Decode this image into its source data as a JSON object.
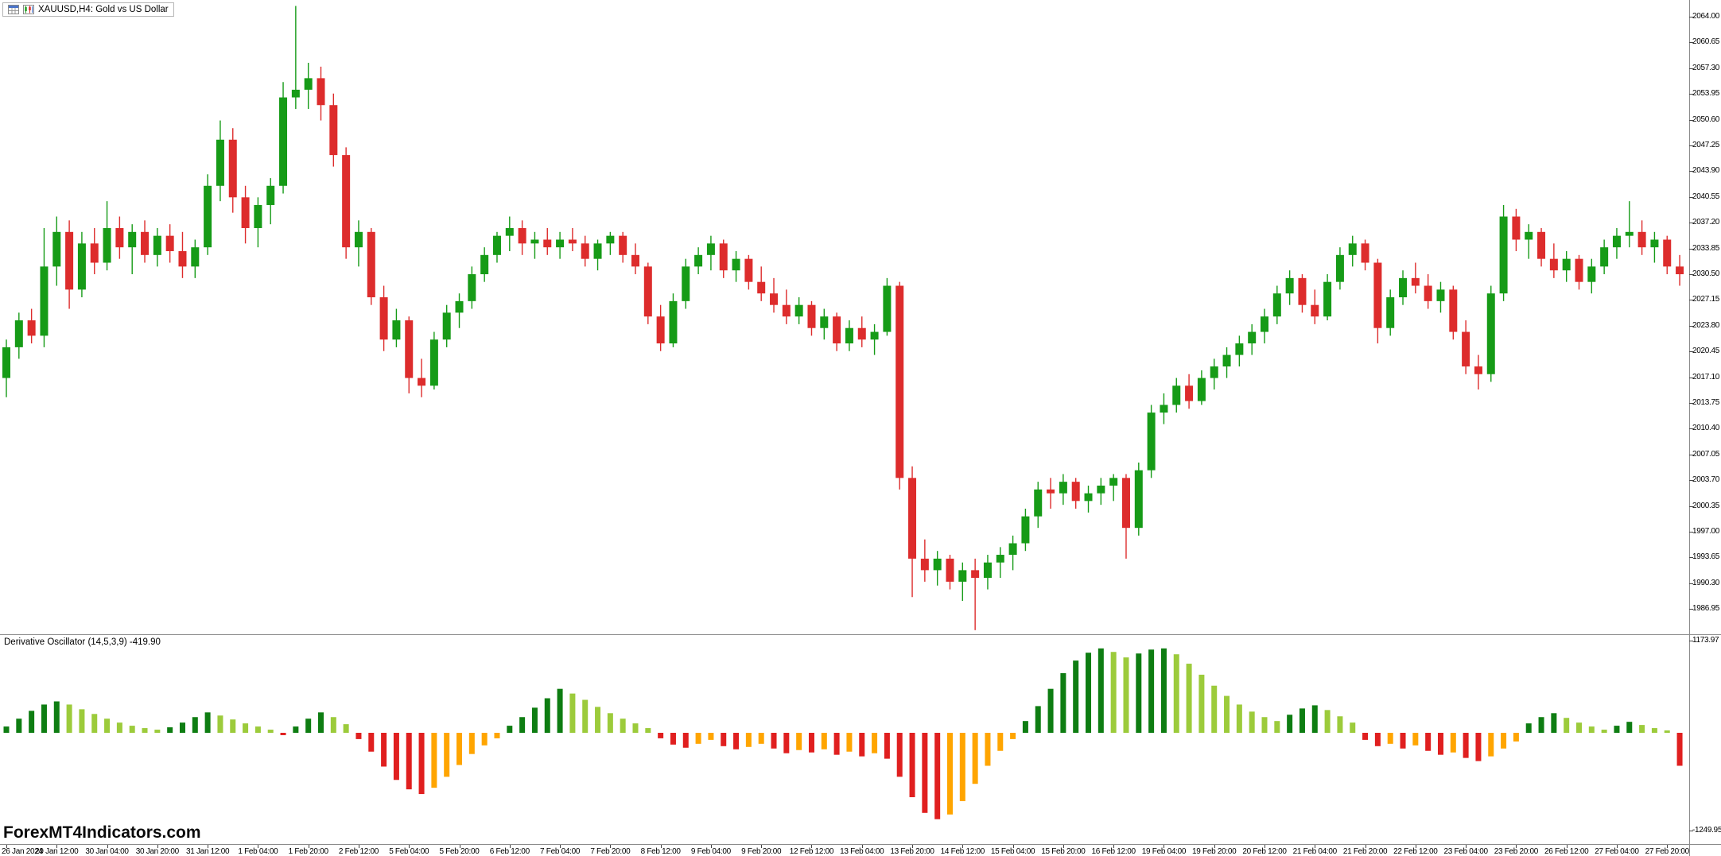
{
  "window": {
    "title": "XAUUSD,H4: Gold vs US Dollar",
    "symbol": "XAUUSD",
    "timeframe": "H4",
    "description": "Gold vs US Dollar"
  },
  "watermark": "ForexMT4Indicators.com",
  "indicator": {
    "name": "Derivative Oscillator",
    "params": "(14,5,3,9)",
    "current_value": "-419.90",
    "label_full": "Derivative Oscillator (14,5,3,9) -419.90"
  },
  "colors": {
    "background": "#FFFFFF",
    "axis_text": "#000000",
    "bull_candle": "#169B17",
    "bear_candle": "#DD2C2C",
    "osc_rising_positive": "#0E7D12",
    "osc_falling_positive": "#9CCB3B",
    "osc_falling_negative": "#E01F1F",
    "osc_rising_negative": "#FFA500"
  },
  "price_axis": {
    "top_value": 2064.0,
    "step": 3.35,
    "labels": [
      "2064.00",
      "2060.65",
      "2057.30",
      "2053.95",
      "2050.60",
      "2047.25",
      "2043.90",
      "2040.55",
      "2037.20",
      "2033.85",
      "2030.50",
      "2027.15",
      "2023.80",
      "2020.45",
      "2017.10",
      "2013.75",
      "2010.40",
      "2007.05",
      "2003.70",
      "2000.35",
      "1997.00",
      "1993.65",
      "1990.30",
      "1986.95"
    ]
  },
  "indicator_axis": {
    "max_label": "1173.97",
    "min_label": "-1249.95"
  },
  "time_axis": {
    "label_every_bars": 4,
    "labels": [
      "26 Jan 2024",
      "29 Jan 12:00",
      "30 Jan 04:00",
      "30 Jan 20:00",
      "31 Jan 12:00",
      "1 Feb 04:00",
      "1 Feb 20:00",
      "2 Feb 12:00",
      "5 Feb 04:00",
      "5 Feb 20:00",
      "6 Feb 12:00",
      "7 Feb 04:00",
      "7 Feb 20:00",
      "8 Feb 12:00",
      "9 Feb 04:00",
      "9 Feb 20:00",
      "12 Feb 12:00",
      "13 Feb 04:00",
      "13 Feb 20:00",
      "14 Feb 12:00",
      "15 Feb 04:00",
      "15 Feb 20:00",
      "16 Feb 12:00",
      "19 Feb 04:00",
      "19 Feb 20:00",
      "20 Feb 12:00",
      "21 Feb 04:00",
      "21 Feb 20:00",
      "22 Feb 12:00",
      "23 Feb 04:00",
      "23 Feb 20:00",
      "26 Feb 12:00",
      "27 Feb 04:00",
      "27 Feb 20:00"
    ]
  },
  "chart_data": [
    {
      "type": "candlestick",
      "title": "XAUUSD H4 - Gold vs US Dollar",
      "ylim": [
        1984.2,
        2066.2
      ],
      "ohlc": [
        [
          2017,
          2022,
          2014.5,
          2021
        ],
        [
          2021,
          2025.5,
          2019.5,
          2024.5
        ],
        [
          2024.5,
          2026,
          2021.5,
          2022.5
        ],
        [
          2022.5,
          2036.5,
          2021,
          2031.5
        ],
        [
          2031.5,
          2038,
          2029,
          2036
        ],
        [
          2036,
          2037.5,
          2026,
          2028.5
        ],
        [
          2028.5,
          2036,
          2027.5,
          2034.5
        ],
        [
          2034.5,
          2036.5,
          2030.5,
          2032
        ],
        [
          2032,
          2040,
          2031,
          2036.5
        ],
        [
          2036.5,
          2038,
          2032.5,
          2034
        ],
        [
          2034,
          2037,
          2030.5,
          2036
        ],
        [
          2036,
          2037.5,
          2032,
          2033
        ],
        [
          2033,
          2036.5,
          2031.5,
          2035.5
        ],
        [
          2035.5,
          2037,
          2032,
          2033.5
        ],
        [
          2033.5,
          2036,
          2030,
          2031.5
        ],
        [
          2031.5,
          2035,
          2030,
          2034
        ],
        [
          2034,
          2043.5,
          2033,
          2042
        ],
        [
          2042,
          2050.5,
          2040,
          2048
        ],
        [
          2048,
          2049.5,
          2038.5,
          2040.5
        ],
        [
          2040.5,
          2042,
          2034.5,
          2036.5
        ],
        [
          2036.5,
          2040.5,
          2034,
          2039.5
        ],
        [
          2039.5,
          2043,
          2037,
          2042
        ],
        [
          2042,
          2055.5,
          2041,
          2053.5
        ],
        [
          2053.5,
          2065.4,
          2052,
          2054.5
        ],
        [
          2054.5,
          2058,
          2052,
          2056
        ],
        [
          2056,
          2057.5,
          2050.5,
          2052.5
        ],
        [
          2052.5,
          2054,
          2044.5,
          2046
        ],
        [
          2046,
          2047,
          2032.5,
          2034
        ],
        [
          2034,
          2037.5,
          2031.5,
          2036
        ],
        [
          2036,
          2036.5,
          2026.5,
          2027.5
        ],
        [
          2027.5,
          2029,
          2020.5,
          2022
        ],
        [
          2022,
          2026,
          2021,
          2024.5
        ],
        [
          2024.5,
          2025,
          2015,
          2017
        ],
        [
          2017,
          2019.5,
          2014.5,
          2016
        ],
        [
          2016,
          2023,
          2015.5,
          2022
        ],
        [
          2022,
          2026.5,
          2021,
          2025.5
        ],
        [
          2025.5,
          2028,
          2023.5,
          2027
        ],
        [
          2027,
          2031.5,
          2026,
          2030.5
        ],
        [
          2030.5,
          2034,
          2029.5,
          2033
        ],
        [
          2033,
          2036,
          2032,
          2035.5
        ],
        [
          2035.5,
          2038,
          2033.5,
          2036.5
        ],
        [
          2036.5,
          2037.5,
          2033,
          2034.5
        ],
        [
          2034.5,
          2036,
          2032.5,
          2035
        ],
        [
          2035,
          2036.5,
          2033,
          2034
        ],
        [
          2034,
          2036,
          2032.5,
          2035
        ],
        [
          2035,
          2036.5,
          2033.5,
          2034.5
        ],
        [
          2034.5,
          2035.5,
          2031.5,
          2032.5
        ],
        [
          2032.5,
          2035,
          2031,
          2034.5
        ],
        [
          2034.5,
          2036,
          2033,
          2035.5
        ],
        [
          2035.5,
          2036,
          2032,
          2033
        ],
        [
          2033,
          2034.5,
          2030.5,
          2031.5
        ],
        [
          2031.5,
          2032,
          2024,
          2025
        ],
        [
          2025,
          2026.5,
          2020.5,
          2021.5
        ],
        [
          2021.5,
          2028,
          2021,
          2027
        ],
        [
          2027,
          2032.5,
          2026,
          2031.5
        ],
        [
          2031.5,
          2034,
          2030.5,
          2033
        ],
        [
          2033,
          2035.5,
          2031,
          2034.5
        ],
        [
          2034.5,
          2035,
          2030,
          2031
        ],
        [
          2031,
          2033.5,
          2029.5,
          2032.5
        ],
        [
          2032.5,
          2033,
          2028.5,
          2029.5
        ],
        [
          2029.5,
          2031.5,
          2027,
          2028
        ],
        [
          2028,
          2030,
          2025.5,
          2026.5
        ],
        [
          2026.5,
          2028.5,
          2024,
          2025
        ],
        [
          2025,
          2027.5,
          2024,
          2026.5
        ],
        [
          2026.5,
          2027,
          2022.5,
          2023.5
        ],
        [
          2023.5,
          2026,
          2022,
          2025
        ],
        [
          2025,
          2025.5,
          2020.5,
          2021.5
        ],
        [
          2021.5,
          2024.5,
          2020.5,
          2023.5
        ],
        [
          2023.5,
          2025,
          2021,
          2022
        ],
        [
          2022,
          2024,
          2020,
          2023
        ],
        [
          2023,
          2030,
          2022.5,
          2029
        ],
        [
          2029,
          2029.5,
          2002.5,
          2004
        ],
        [
          2004,
          2005.5,
          1988.5,
          1993.5
        ],
        [
          1993.5,
          1996,
          1990.5,
          1992
        ],
        [
          1992,
          1994.5,
          1990,
          1993.5
        ],
        [
          1993.5,
          1994,
          1989.5,
          1990.5
        ],
        [
          1990.5,
          1993,
          1988,
          1992
        ],
        [
          1992,
          1993.5,
          1984.2,
          1991
        ],
        [
          1991,
          1994,
          1989.5,
          1993
        ],
        [
          1993,
          1995,
          1991,
          1994
        ],
        [
          1994,
          1996.5,
          1992,
          1995.5
        ],
        [
          1995.5,
          2000,
          1994.5,
          1999
        ],
        [
          1999,
          2003.5,
          1997.5,
          2002.5
        ],
        [
          2002.5,
          2004,
          2000,
          2002
        ],
        [
          2002,
          2004.5,
          2000.5,
          2003.5
        ],
        [
          2003.5,
          2004,
          2000,
          2001
        ],
        [
          2001,
          2003,
          1999.5,
          2002
        ],
        [
          2002,
          2004,
          2000.5,
          2003
        ],
        [
          2003,
          2004.5,
          2001,
          2004
        ],
        [
          2004,
          2004.5,
          1993.5,
          1997.5
        ],
        [
          1997.5,
          2006,
          1996.5,
          2005
        ],
        [
          2005,
          2013.5,
          2004,
          2012.5
        ],
        [
          2012.5,
          2015,
          2011,
          2013.5
        ],
        [
          2013.5,
          2017,
          2012.5,
          2016
        ],
        [
          2016,
          2017.5,
          2013,
          2014
        ],
        [
          2014,
          2018,
          2013.5,
          2017
        ],
        [
          2017,
          2019.5,
          2015.5,
          2018.5
        ],
        [
          2018.5,
          2021,
          2017,
          2020
        ],
        [
          2020,
          2022.5,
          2018.5,
          2021.5
        ],
        [
          2021.5,
          2024,
          2020,
          2023
        ],
        [
          2023,
          2026,
          2021.5,
          2025
        ],
        [
          2025,
          2029,
          2024,
          2028
        ],
        [
          2028,
          2031,
          2026.5,
          2030
        ],
        [
          2030,
          2030.5,
          2025.5,
          2026.5
        ],
        [
          2026.5,
          2028.5,
          2024,
          2025
        ],
        [
          2025,
          2030.5,
          2024.5,
          2029.5
        ],
        [
          2029.5,
          2034,
          2028.5,
          2033
        ],
        [
          2033,
          2035.5,
          2031.5,
          2034.5
        ],
        [
          2034.5,
          2035,
          2031,
          2032
        ],
        [
          2032,
          2032.5,
          2021.5,
          2023.5
        ],
        [
          2023.5,
          2028.5,
          2022.5,
          2027.5
        ],
        [
          2027.5,
          2031,
          2026.5,
          2030
        ],
        [
          2030,
          2032,
          2028,
          2029
        ],
        [
          2029,
          2030.5,
          2026,
          2027
        ],
        [
          2027,
          2029.5,
          2025.5,
          2028.5
        ],
        [
          2028.5,
          2029,
          2022,
          2023
        ],
        [
          2023,
          2024.5,
          2017.5,
          2018.5
        ],
        [
          2018.5,
          2020,
          2015.5,
          2017.5
        ],
        [
          2017.5,
          2029,
          2016.5,
          2028
        ],
        [
          2028,
          2039.5,
          2027,
          2038
        ],
        [
          2038,
          2039,
          2033.5,
          2035
        ],
        [
          2035,
          2037,
          2032.5,
          2036
        ],
        [
          2036,
          2036.5,
          2031.5,
          2032.5
        ],
        [
          2032.5,
          2034.5,
          2030,
          2031
        ],
        [
          2031,
          2033.5,
          2029.5,
          2032.5
        ],
        [
          2032.5,
          2033,
          2028.5,
          2029.5
        ],
        [
          2029.5,
          2032.5,
          2028,
          2031.5
        ],
        [
          2031.5,
          2035,
          2030.5,
          2034
        ],
        [
          2034,
          2036.5,
          2032.5,
          2035.5
        ],
        [
          2035.5,
          2040,
          2034,
          2036
        ],
        [
          2036,
          2037.5,
          2033,
          2034
        ],
        [
          2034,
          2036,
          2032,
          2035
        ],
        [
          2035,
          2035.5,
          2030.5,
          2031.5
        ],
        [
          2031.5,
          2033,
          2029,
          2030.5
        ]
      ]
    },
    {
      "type": "bar",
      "name": "Derivative Oscillator (14,5,3,9)",
      "last_value": -419.9,
      "ylim": [
        -1249.95,
        1173.97
      ],
      "values": [
        80,
        180,
        280,
        360,
        400,
        360,
        300,
        240,
        180,
        130,
        90,
        60,
        40,
        70,
        130,
        200,
        260,
        220,
        170,
        120,
        80,
        40,
        -30,
        80,
        180,
        260,
        200,
        110,
        -80,
        -240,
        -430,
        -600,
        -720,
        -780,
        -700,
        -560,
        -410,
        -270,
        -160,
        -70,
        90,
        200,
        320,
        440,
        560,
        500,
        420,
        330,
        250,
        180,
        120,
        60,
        -70,
        -150,
        -190,
        -140,
        -90,
        -170,
        -210,
        -180,
        -140,
        -200,
        -260,
        -220,
        -250,
        -210,
        -280,
        -240,
        -300,
        -260,
        -330,
        -560,
        -820,
        -1020,
        -1100,
        -1040,
        -870,
        -650,
        -420,
        -230,
        -80,
        150,
        340,
        560,
        760,
        920,
        1020,
        1075,
        1030,
        960,
        1010,
        1060,
        1075,
        1000,
        880,
        740,
        600,
        470,
        360,
        270,
        200,
        150,
        230,
        310,
        350,
        290,
        210,
        130,
        -90,
        -170,
        -140,
        -200,
        -160,
        -230,
        -280,
        -250,
        -320,
        -360,
        -300,
        -200,
        -110,
        120,
        200,
        250,
        190,
        130,
        80,
        40,
        90,
        140,
        100,
        60,
        30,
        -419.9
      ]
    }
  ]
}
